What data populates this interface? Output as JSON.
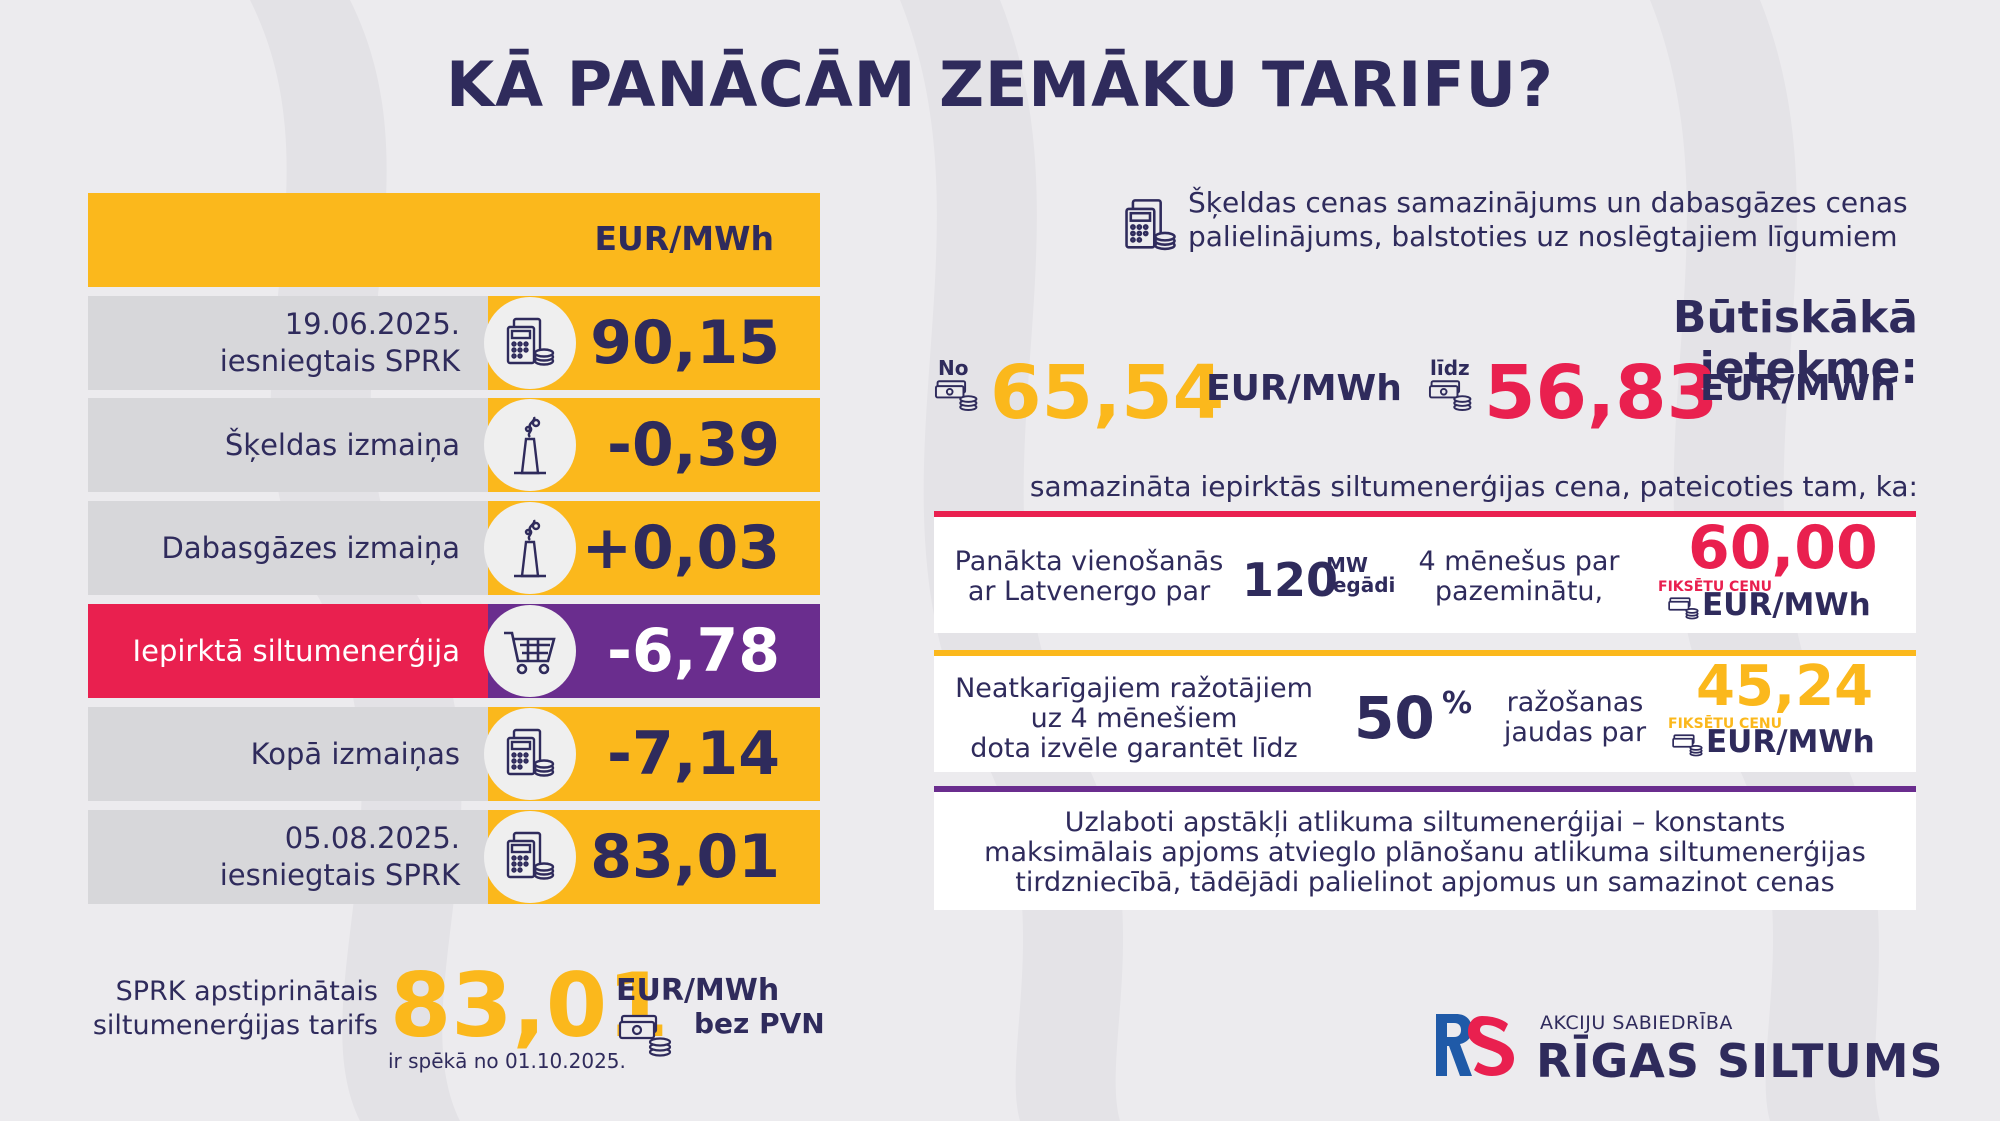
{
  "title": "KĀ PANĀCĀM ZEMĀKU TARIFU?",
  "table": {
    "header_unit": "EUR/MWh",
    "rows": [
      {
        "label_line1": "19.06.2025.",
        "label_line2": "iesniegtais SPRK",
        "value": "90,15",
        "icon": "calculator-coins-icon"
      },
      {
        "label_line1": "Šķeldas izmaiņa",
        "label_line2": "",
        "value": "-0,39",
        "icon": "factory-chimney-icon"
      },
      {
        "label_line1": "Dabasgāzes izmaiņa",
        "label_line2": "",
        "value": "+0,03",
        "icon": "factory-chimney-icon"
      },
      {
        "label_line1": "Iepirktā siltumenerģija",
        "label_line2": "",
        "value": "-6,78",
        "icon": "shopping-cart-icon"
      },
      {
        "label_line1": "Kopā izmaiņas",
        "label_line2": "",
        "value": "-7,14",
        "icon": "calculator-coins-icon"
      },
      {
        "label_line1": "05.08.2025.",
        "label_line2": "iesniegtais SPRK",
        "value": "83,01",
        "icon": "calculator-coins-icon"
      }
    ]
  },
  "tariff": {
    "label_line1": "SPRK apstiprinātais",
    "label_line2": "siltumenerģijas tarifs",
    "value": "83,01",
    "unit": "EUR/MWh",
    "vat": "bez PVN",
    "effective": "ir spēkā no 01.10.2025."
  },
  "right": {
    "note_line1": "Šķeldas cenas samazinājums un dabasgāzes cenas",
    "note_line2": "palielinājums, balstoties uz noslēgtajiem līgumiem",
    "impact_title": "Būtiskākā ietekme:",
    "from_label": "No",
    "from_value": "65,54",
    "from_unit": "EUR/MWh",
    "to_label": "līdz",
    "to_value": "56,83",
    "to_unit": "EUR/MWh",
    "reduced_text": "samazināta iepirktās siltumenerģijas cena, pateicoties tam, ka:"
  },
  "card1": {
    "text_line1": "Panākta vienošanās",
    "text_line2": "ar Latvenergo par",
    "amount": "120",
    "amount_unit1": "MW",
    "amount_unit2": "iegādi",
    "mid_line1": "4 mēnešus par",
    "mid_line2": "pazeminātu,",
    "price": "60,00",
    "fixed_label": "FIKSĒTU CENU",
    "price_unit": "EUR/MWh"
  },
  "card2": {
    "text_line1": "Neatkarīgajiem ražotājiem",
    "text_line2": "uz 4 mēnešiem",
    "text_line3": "dota izvēle garantēt līdz",
    "percent": "50",
    "percent_sign": "%",
    "mid_line1": "ražošanas",
    "mid_line2": "jaudas par",
    "price": "45,24",
    "fixed_label": "FIKSĒTU CENU",
    "price_unit": "EUR/MWh"
  },
  "card3": {
    "line1": "Uzlaboti apstākļi atlikuma siltumenerģijai – konstants",
    "line2": "maksimālais apjoms atvieglo plānošanu atlikuma siltumenerģijas",
    "line3": "tirdzniecībā, tādējādi palielinot  apjomus un samazinot cenas"
  },
  "logo": {
    "small": "AKCIJU SABIEDRĪBA",
    "big": "RĪGAS SILTUMS"
  },
  "colors": {
    "navy": "#2f2b5c",
    "yellow": "#fbb81c",
    "red": "#e9204f",
    "purple": "#6a2d8e",
    "grey": "#d7d7da"
  }
}
